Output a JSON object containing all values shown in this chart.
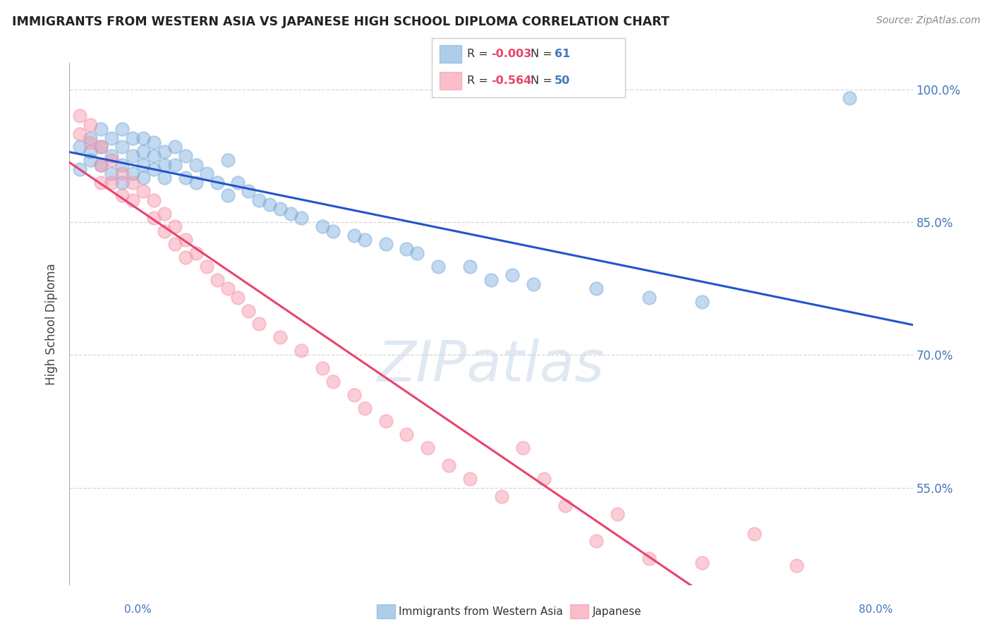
{
  "title": "IMMIGRANTS FROM WESTERN ASIA VS JAPANESE HIGH SCHOOL DIPLOMA CORRELATION CHART",
  "source": "Source: ZipAtlas.com",
  "xlabel_bottom_left": "0.0%",
  "xlabel_bottom_right": "80.0%",
  "ylabel": "High School Diploma",
  "legend_blue_label": "Immigrants from Western Asia",
  "legend_pink_label": "Japanese",
  "R_blue": -0.003,
  "N_blue": 61,
  "R_pink": -0.564,
  "N_pink": 50,
  "xlim": [
    0.0,
    0.8
  ],
  "ylim": [
    0.44,
    1.03
  ],
  "yticks": [
    0.55,
    0.7,
    0.85,
    1.0
  ],
  "ytick_labels": [
    "55.0%",
    "70.0%",
    "85.0%",
    "100.0%"
  ],
  "background_color": "#ffffff",
  "blue_color": "#7aacdc",
  "pink_color": "#f892a8",
  "blue_line_color": "#2255cc",
  "pink_line_color": "#e8446a",
  "grid_color": "#cccccc",
  "watermark_color": "#c8d8e8",
  "watermark_text": "ZIPatlas",
  "blue_scatter_x": [
    0.01,
    0.01,
    0.02,
    0.02,
    0.02,
    0.03,
    0.03,
    0.03,
    0.04,
    0.04,
    0.04,
    0.05,
    0.05,
    0.05,
    0.05,
    0.06,
    0.06,
    0.06,
    0.07,
    0.07,
    0.07,
    0.07,
    0.08,
    0.08,
    0.08,
    0.09,
    0.09,
    0.09,
    0.1,
    0.1,
    0.11,
    0.11,
    0.12,
    0.12,
    0.13,
    0.14,
    0.15,
    0.15,
    0.16,
    0.17,
    0.18,
    0.19,
    0.2,
    0.21,
    0.22,
    0.24,
    0.25,
    0.27,
    0.28,
    0.3,
    0.32,
    0.33,
    0.35,
    0.38,
    0.4,
    0.42,
    0.44,
    0.5,
    0.55,
    0.6,
    0.74
  ],
  "blue_scatter_y": [
    0.935,
    0.91,
    0.945,
    0.93,
    0.92,
    0.955,
    0.935,
    0.915,
    0.945,
    0.925,
    0.905,
    0.955,
    0.935,
    0.915,
    0.895,
    0.945,
    0.925,
    0.905,
    0.945,
    0.93,
    0.915,
    0.9,
    0.94,
    0.925,
    0.91,
    0.93,
    0.915,
    0.9,
    0.935,
    0.915,
    0.925,
    0.9,
    0.915,
    0.895,
    0.905,
    0.895,
    0.92,
    0.88,
    0.895,
    0.885,
    0.875,
    0.87,
    0.865,
    0.86,
    0.855,
    0.845,
    0.84,
    0.835,
    0.83,
    0.825,
    0.82,
    0.815,
    0.8,
    0.8,
    0.785,
    0.79,
    0.78,
    0.775,
    0.765,
    0.76,
    0.99
  ],
  "pink_scatter_x": [
    0.01,
    0.01,
    0.02,
    0.02,
    0.03,
    0.03,
    0.03,
    0.04,
    0.04,
    0.05,
    0.05,
    0.06,
    0.06,
    0.07,
    0.08,
    0.08,
    0.09,
    0.09,
    0.1,
    0.1,
    0.11,
    0.11,
    0.12,
    0.13,
    0.14,
    0.15,
    0.16,
    0.17,
    0.18,
    0.2,
    0.22,
    0.24,
    0.25,
    0.27,
    0.28,
    0.3,
    0.32,
    0.34,
    0.36,
    0.38,
    0.41,
    0.43,
    0.45,
    0.47,
    0.5,
    0.52,
    0.55,
    0.6,
    0.65,
    0.69
  ],
  "pink_scatter_y": [
    0.97,
    0.95,
    0.96,
    0.94,
    0.935,
    0.915,
    0.895,
    0.92,
    0.895,
    0.905,
    0.88,
    0.895,
    0.875,
    0.885,
    0.875,
    0.855,
    0.86,
    0.84,
    0.845,
    0.825,
    0.83,
    0.81,
    0.815,
    0.8,
    0.785,
    0.775,
    0.765,
    0.75,
    0.735,
    0.72,
    0.705,
    0.685,
    0.67,
    0.655,
    0.64,
    0.625,
    0.61,
    0.595,
    0.575,
    0.56,
    0.54,
    0.595,
    0.56,
    0.53,
    0.49,
    0.52,
    0.47,
    0.465,
    0.498,
    0.462
  ]
}
